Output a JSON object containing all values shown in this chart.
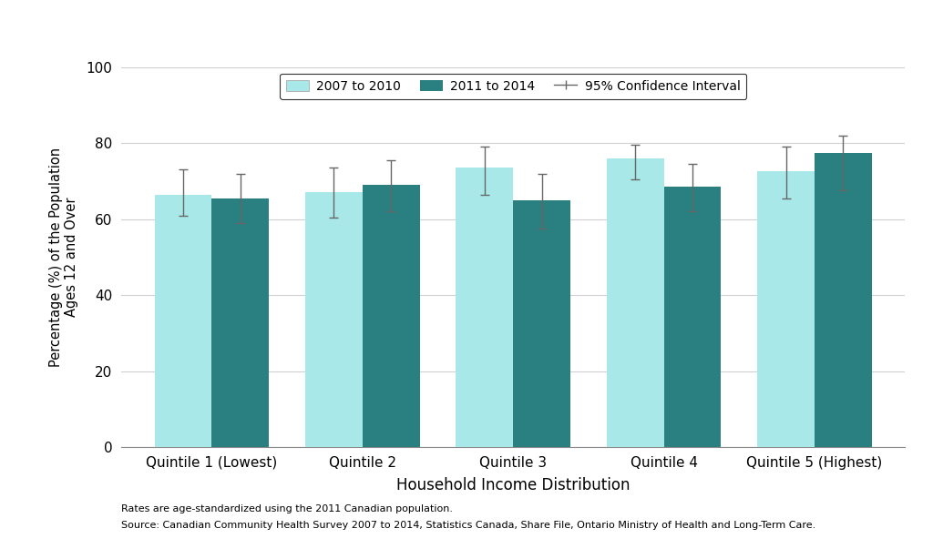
{
  "categories": [
    "Quintile 1 (Lowest)",
    "Quintile 2",
    "Quintile 3",
    "Quintile 4",
    "Quintile 5 (Highest)"
  ],
  "values_2007_2010": [
    66.5,
    67.0,
    73.5,
    76.0,
    72.5
  ],
  "values_2011_2014": [
    65.5,
    69.0,
    65.0,
    68.5,
    77.5
  ],
  "ci_2007_2010_upper": [
    73.0,
    73.5,
    79.0,
    79.5,
    79.0
  ],
  "ci_2007_2010_lower": [
    61.0,
    60.5,
    66.5,
    70.5,
    65.5
  ],
  "ci_2011_2014_upper": [
    72.0,
    75.5,
    72.0,
    74.5,
    82.0
  ],
  "ci_2011_2014_lower": [
    59.0,
    62.0,
    57.5,
    62.0,
    67.5
  ],
  "color_2007_2010": "#a8e8e8",
  "color_2011_2014": "#2a8080",
  "xlabel": "Household Income Distribution",
  "ylabel": "Percentage (%) of the Population\nAges 12 and Over",
  "ylim": [
    0,
    100
  ],
  "yticks": [
    0,
    20,
    40,
    60,
    80,
    100
  ],
  "legend_label_1": "2007 to 2010",
  "legend_label_2": "2011 to 2014",
  "legend_label_3": "95% Confidence Interval",
  "footnote_line1": "Rates are age-standardized using the 2011 Canadian population.",
  "footnote_line2": "Source: Canadian Community Health Survey 2007 to 2014, Statistics Canada, Share File, Ontario Ministry of Health and Long-Term Care.",
  "bar_width": 0.38,
  "ci_color": "#666666",
  "grid_color": "#d0d0d0"
}
